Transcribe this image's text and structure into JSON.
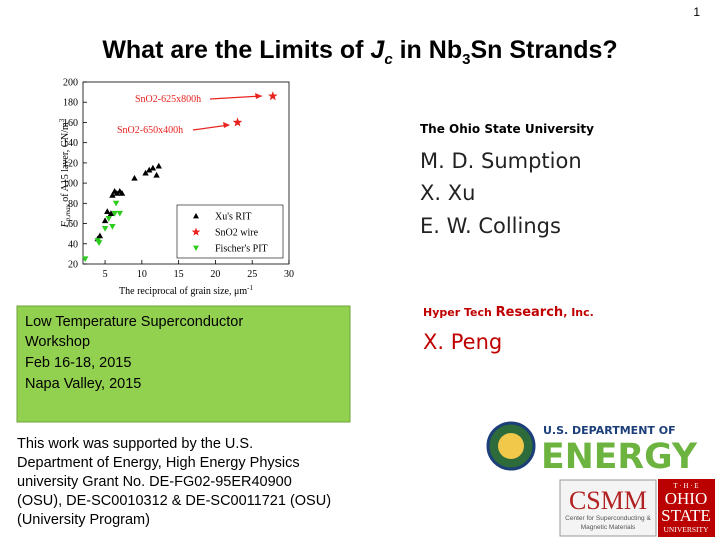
{
  "slide": {
    "page_number": "1",
    "title": {
      "pre": "What are the Limits of ",
      "j": "J",
      "c": "c",
      "mid": " in Nb",
      "three": "3",
      "post": "Sn Strands?"
    },
    "affiliation_1": "The Ohio State University",
    "authors_1": [
      "M. D. Sumption",
      "X. Xu",
      "E. W. Collings"
    ],
    "affiliation_2": {
      "a": "Hyper Tech ",
      "b": "Research",
      "c": ", Inc."
    },
    "authors_2": [
      "X. Peng"
    ],
    "workshop": [
      "Low Temperature Superconductor",
      "Workshop",
      "Feb 16-18, 2015",
      "Napa Valley, 2015"
    ],
    "acknowledgment": [
      "This work was supported by the U.S.",
      "Department of Energy, High Energy Physics",
      "university Grant No. DE-FG02-95ER40900",
      "(OSU), DE-SC0010312 & DE-SC0011721 (OSU)",
      "(University Program)"
    ],
    "doe_logo": [
      "U.S. DEPARTMENT OF",
      "ENERGY"
    ],
    "csmm_logo": [
      "CSMM",
      "Center for Superconducting &",
      "Magnetic Materials"
    ],
    "osu_logo": [
      "T · H · E",
      "OHIO",
      "STATE",
      "UNIVERSITY"
    ]
  },
  "chart_data": {
    "type": "scatter",
    "ylabel": {
      "f": "F",
      "sub": "p,max",
      "rest": " of A15 layer, GN/m",
      "sup": "3"
    },
    "xlabel": {
      "rest": "The reciprocal of grain size, μm",
      "sup": "-1"
    },
    "annotations": [
      "SnO2-625x800h",
      "SnO2-650x400h"
    ],
    "xlim": [
      2,
      30
    ],
    "xticks": [
      5,
      10,
      15,
      20,
      25,
      30
    ],
    "ylim": [
      20,
      200
    ],
    "yticks": [
      20,
      40,
      60,
      80,
      100,
      120,
      140,
      160,
      180,
      200
    ],
    "series": [
      {
        "name": "Xu's RIT",
        "color": "#000000",
        "marker": "triangle-up",
        "x": [
          4,
          4.3,
          5,
          5.3,
          5.8,
          6,
          6.3,
          6.6,
          7,
          7.3,
          9,
          10.5,
          11,
          11.5,
          12,
          12.3
        ],
        "values": [
          45,
          48,
          63,
          72,
          70,
          88,
          92,
          90,
          92,
          90,
          105,
          110,
          113,
          115,
          108,
          117
        ]
      },
      {
        "name": "SnO2 wire",
        "color": "#e8231f",
        "marker": "star",
        "x": [
          23,
          27.8
        ],
        "values": [
          160,
          186
        ]
      },
      {
        "name": "Fischer's PIT",
        "color": "#2ecc1f",
        "marker": "triangle-down",
        "x": [
          2.3,
          4,
          4.2,
          5,
          5.5,
          6,
          6.3,
          6.5,
          7
        ],
        "values": [
          25,
          43,
          41,
          55,
          65,
          57,
          70,
          80,
          70
        ]
      }
    ]
  }
}
